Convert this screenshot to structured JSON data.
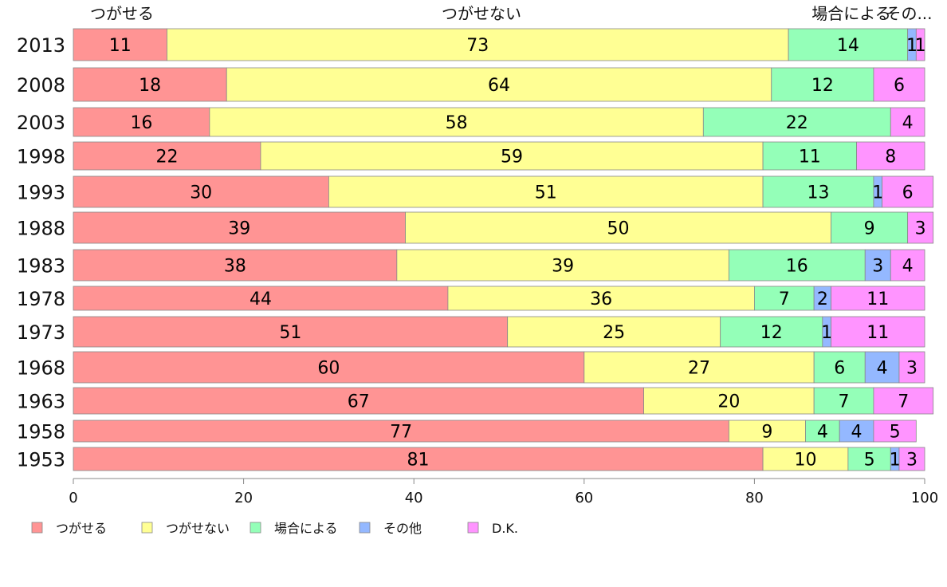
{
  "chart_data": {
    "type": "bar",
    "orientation": "horizontal",
    "stacked": true,
    "categories": [
      "2013",
      "2008",
      "2003",
      "1998",
      "1993",
      "1988",
      "1983",
      "1978",
      "1973",
      "1968",
      "1963",
      "1958",
      "1953"
    ],
    "series": [
      {
        "name": "つがせる",
        "color": "#ff9494",
        "values": [
          11,
          18,
          16,
          22,
          30,
          39,
          38,
          44,
          51,
          60,
          67,
          77,
          81
        ]
      },
      {
        "name": "つがせない",
        "color": "#ffff94",
        "values": [
          73,
          64,
          58,
          59,
          51,
          50,
          39,
          36,
          25,
          27,
          20,
          9,
          10
        ]
      },
      {
        "name": "場合による",
        "color": "#94ffb8",
        "values": [
          14,
          12,
          22,
          11,
          13,
          9,
          16,
          7,
          12,
          6,
          7,
          4,
          5
        ]
      },
      {
        "name": "その他",
        "color": "#94b8ff",
        "values": [
          1,
          0,
          0,
          0,
          1,
          0,
          3,
          2,
          1,
          4,
          0,
          4,
          1
        ]
      },
      {
        "name": "D.K.",
        "color": "#ff94ff",
        "values": [
          1,
          6,
          4,
          8,
          6,
          3,
          4,
          11,
          11,
          3,
          7,
          5,
          3
        ]
      }
    ],
    "top_labels": [
      "つがせる",
      "つがせない",
      "場合による",
      "その..."
    ],
    "xlim": [
      0,
      100
    ],
    "xticks": [
      "0",
      "20",
      "40",
      "60",
      "80",
      "100"
    ],
    "legend": {
      "position": "bottom-left",
      "items": [
        "つがせる",
        "つがせない",
        "場合による",
        "その他",
        "D.K."
      ]
    }
  }
}
